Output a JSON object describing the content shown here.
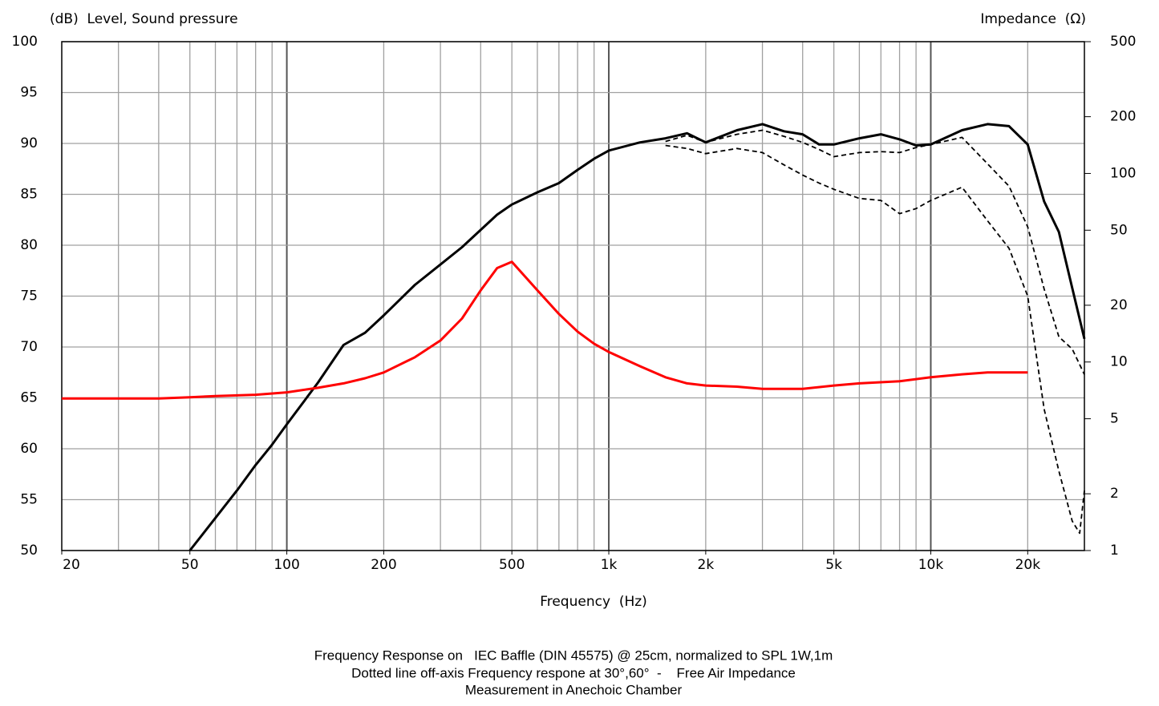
{
  "chart_data": {
    "type": "line",
    "y_label": "(dB)  Level, Sound pressure",
    "y2_label": "Impedance  (Ω)",
    "x_label": "Frequency  (Hz)",
    "notes": [
      "Frequency Response on   IEC Baffle (DIN 45575) @ 25cm, normalized to SPL 1W,1m",
      "Dotted line off-axis Frequency respone at 30°,60°  -    Free Air Impedance",
      "Measurement in Anechoic Chamber"
    ],
    "xscale": "log",
    "xlim": [
      20,
      30000
    ],
    "xticks": [
      20,
      50,
      100,
      200,
      500,
      {
        "value": 1000,
        "label": "1k"
      },
      {
        "value": 2000,
        "label": "2k"
      },
      {
        "value": 5000,
        "label": "5k"
      },
      {
        "value": 10000,
        "label": "10k"
      },
      {
        "value": 20000,
        "label": "20k"
      }
    ],
    "xgrid": [
      30,
      40,
      50,
      60,
      70,
      80,
      90,
      100,
      200,
      300,
      400,
      500,
      600,
      700,
      800,
      900,
      1000,
      2000,
      3000,
      4000,
      5000,
      6000,
      7000,
      8000,
      9000,
      10000,
      20000
    ],
    "ylim": [
      50,
      100
    ],
    "yticks": [
      50,
      55,
      60,
      65,
      70,
      75,
      80,
      85,
      90,
      95,
      100
    ],
    "y2scale": "log",
    "y2lim": [
      1,
      500
    ],
    "y2ticks": [
      1,
      2,
      5,
      10,
      20,
      50,
      100,
      200,
      500
    ],
    "y2color": "#ff0000",
    "grid": true,
    "series": [
      {
        "color": "#000000",
        "linestyle": "solid",
        "x": [
          50,
          60,
          70,
          80,
          90,
          100,
          125,
          150,
          175,
          200,
          250,
          300,
          350,
          400,
          450,
          500,
          600,
          700,
          800,
          900,
          1000,
          1250,
          1500,
          1750,
          2000,
          2500,
          3000,
          3500,
          4000,
          4500,
          5000,
          6000,
          7000,
          8000,
          9000,
          10000,
          12500,
          15000,
          17500,
          20000,
          22500,
          25000,
          27500,
          30000
        ],
        "values": [
          50,
          53.2,
          55.9,
          58.4,
          60.4,
          62.4,
          66.5,
          70.2,
          71.4,
          73.1,
          76.1,
          78.1,
          79.8,
          81.5,
          83.0,
          84.0,
          85.2,
          86.1,
          87.4,
          88.5,
          89.3,
          90.1,
          90.5,
          91.0,
          90.1,
          91.3,
          91.9,
          91.2,
          90.9,
          89.9,
          89.9,
          90.5,
          90.9,
          90.4,
          89.8,
          89.9,
          91.3,
          91.9,
          91.7,
          89.9,
          84.3,
          81.3,
          75.8,
          70.8
        ]
      },
      {
        "color": "#000000",
        "linestyle": "dashed",
        "x": [
          1500,
          1750,
          2000,
          2500,
          3000,
          3500,
          4000,
          4500,
          5000,
          6000,
          7000,
          8000,
          9000,
          10000,
          12500,
          15000,
          17500,
          20000,
          22500,
          25000,
          27500,
          30000
        ],
        "values": [
          90.2,
          90.8,
          90.1,
          90.9,
          91.3,
          90.7,
          90.1,
          89.4,
          88.7,
          89.1,
          89.2,
          89.1,
          89.6,
          89.9,
          90.6,
          88.0,
          85.8,
          81.8,
          75.7,
          71.0,
          69.8,
          67.3
        ]
      },
      {
        "color": "#000000",
        "linestyle": "dashed",
        "x": [
          1500,
          1750,
          2000,
          2500,
          3000,
          3500,
          4000,
          4500,
          5000,
          6000,
          7000,
          8000,
          9000,
          10000,
          12500,
          15000,
          17500,
          20000,
          22500,
          25000,
          27500,
          29000,
          30000
        ],
        "values": [
          89.8,
          89.5,
          89.0,
          89.5,
          89.1,
          87.9,
          86.9,
          86.1,
          85.5,
          84.6,
          84.4,
          83.1,
          83.6,
          84.4,
          85.7,
          82.4,
          79.7,
          75.0,
          63.9,
          57.8,
          52.9,
          51.7,
          55.9
        ]
      },
      {
        "color": "#ff0000",
        "linestyle": "solid",
        "axis": "y2",
        "x": [
          20,
          40,
          50,
          60,
          80,
          100,
          125,
          150,
          175,
          200,
          250,
          300,
          350,
          400,
          450,
          500,
          600,
          700,
          800,
          900,
          1000,
          1250,
          1500,
          1750,
          2000,
          2500,
          3000,
          4000,
          5000,
          6000,
          8000,
          10000,
          12500,
          15000,
          20000
        ],
        "values": [
          6.4,
          6.4,
          6.5,
          6.6,
          6.7,
          6.9,
          7.3,
          7.7,
          8.2,
          8.8,
          10.6,
          13,
          17,
          24,
          31.5,
          34,
          24,
          18,
          14.5,
          12.5,
          11.3,
          9.5,
          8.3,
          7.7,
          7.5,
          7.4,
          7.2,
          7.2,
          7.5,
          7.7,
          7.9,
          8.3,
          8.6,
          8.8,
          8.8
        ]
      }
    ]
  }
}
